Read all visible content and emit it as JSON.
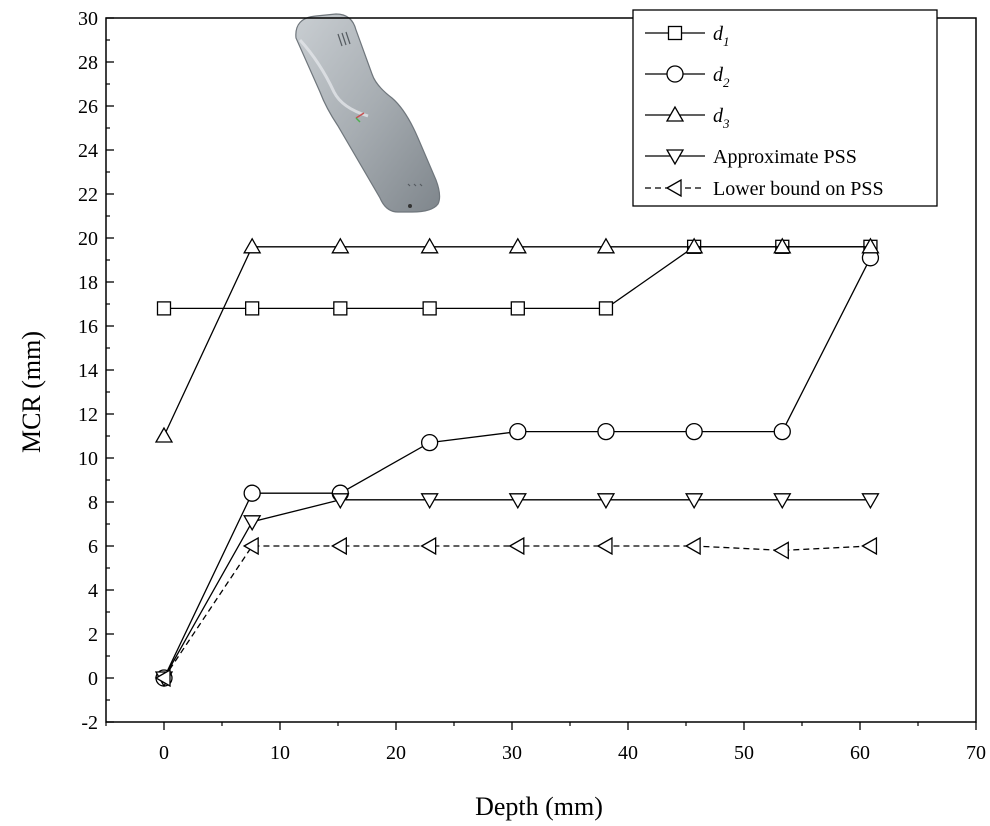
{
  "chart_data": {
    "type": "line",
    "title": "",
    "xlabel": "Depth (mm)",
    "ylabel": "MCR (mm)",
    "xlim": [
      -5,
      70
    ],
    "ylim": [
      -2,
      30
    ],
    "xticks": [
      0,
      10,
      20,
      30,
      40,
      50,
      60,
      70
    ],
    "yticks": [
      -2,
      0,
      2,
      4,
      6,
      8,
      10,
      12,
      14,
      16,
      18,
      20,
      22,
      24,
      26,
      28,
      30
    ],
    "grid": false,
    "legend_position": "top-right",
    "x": [
      0,
      7.6,
      15.2,
      22.9,
      30.5,
      38.1,
      45.7,
      53.3,
      60.9
    ],
    "series": [
      {
        "name": "d",
        "subscript": "1",
        "marker": "square",
        "dash": "solid",
        "values": [
          16.8,
          16.8,
          16.8,
          16.8,
          16.8,
          16.8,
          19.6,
          19.6,
          19.6
        ]
      },
      {
        "name": "d",
        "subscript": "2",
        "marker": "circle",
        "dash": "solid",
        "values": [
          0,
          8.4,
          8.4,
          10.7,
          11.2,
          11.2,
          11.2,
          11.2,
          19.1
        ]
      },
      {
        "name": "d",
        "subscript": "3",
        "marker": "triangle-up",
        "dash": "solid",
        "values": [
          11.0,
          19.6,
          19.6,
          19.6,
          19.6,
          19.6,
          19.6,
          19.6,
          19.6
        ]
      },
      {
        "name": "Approximate PSS",
        "subscript": "",
        "marker": "triangle-down",
        "dash": "solid",
        "values": [
          0,
          7.1,
          8.1,
          8.1,
          8.1,
          8.1,
          8.1,
          8.1,
          8.1
        ]
      },
      {
        "name": "Lower bound on PSS",
        "subscript": "",
        "marker": "triangle-left",
        "dash": "dashed",
        "values": [
          0,
          6.0,
          6.0,
          6.0,
          6.0,
          6.0,
          6.0,
          5.8,
          6.0
        ]
      }
    ]
  }
}
